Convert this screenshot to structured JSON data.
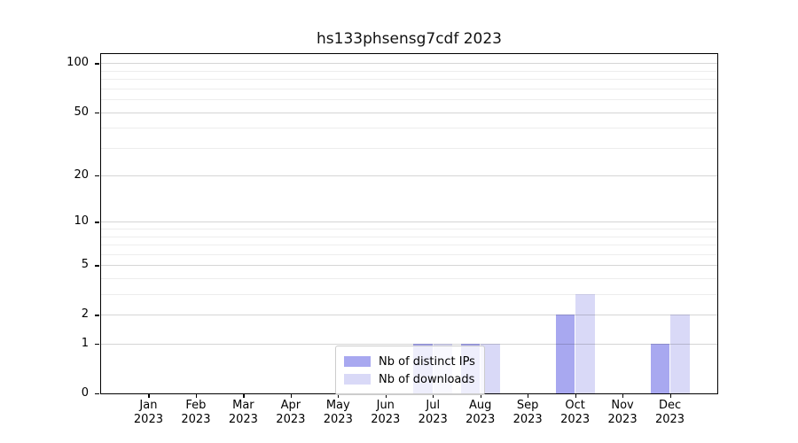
{
  "title": "hs133phsensg7cdf 2023",
  "chart_data": {
    "type": "bar",
    "title": "hs133phsensg7cdf 2023",
    "xlabel": "",
    "ylabel": "",
    "y_scale": "log1p",
    "ylim": [
      0,
      114
    ],
    "grid": "on",
    "legend_position": "lower-center-inside",
    "categories": [
      "Jan",
      "Feb",
      "Mar",
      "Apr",
      "May",
      "Jun",
      "Jul",
      "Aug",
      "Sep",
      "Oct",
      "Nov",
      "Dec"
    ],
    "category_year": "2023",
    "y_major_ticks": [
      0,
      1,
      2,
      5,
      10,
      20,
      50,
      100
    ],
    "y_minor_gridlines": [
      3,
      4,
      6,
      7,
      8,
      9,
      30,
      40,
      60,
      70,
      80,
      90
    ],
    "series": [
      {
        "name": "Nb of distinct IPs",
        "color": "#a8a8f0",
        "values": [
          0,
          0,
          0,
          0,
          0,
          0,
          1,
          1,
          0,
          2,
          0,
          1
        ]
      },
      {
        "name": "Nb of downloads",
        "color": "#d9d9f7",
        "values": [
          0,
          0,
          0,
          0,
          0,
          0,
          1,
          1,
          0,
          3,
          0,
          2
        ]
      }
    ]
  }
}
